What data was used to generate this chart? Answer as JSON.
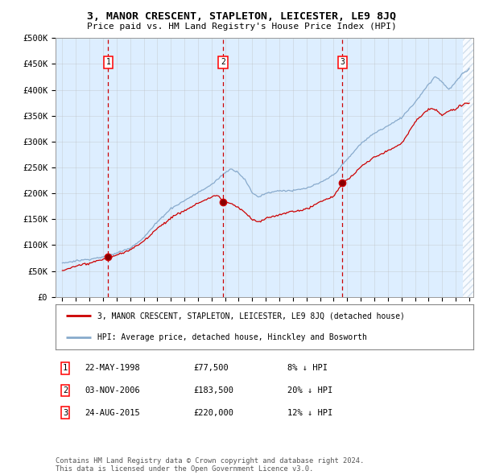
{
  "title": "3, MANOR CRESCENT, STAPLETON, LEICESTER, LE9 8JQ",
  "subtitle": "Price paid vs. HM Land Registry's House Price Index (HPI)",
  "ylim": [
    0,
    500000
  ],
  "yticks": [
    0,
    50000,
    100000,
    150000,
    200000,
    250000,
    300000,
    350000,
    400000,
    450000,
    500000
  ],
  "ytick_labels": [
    "£0",
    "£50K",
    "£100K",
    "£150K",
    "£200K",
    "£250K",
    "£300K",
    "£350K",
    "£400K",
    "£450K",
    "£500K"
  ],
  "sale_dates": [
    1998.38,
    2006.84,
    2015.65
  ],
  "sale_prices": [
    77500,
    183500,
    220000
  ],
  "sale_labels": [
    "1",
    "2",
    "3"
  ],
  "vline_color": "#cc0000",
  "sale_color": "#cc0000",
  "hpi_color": "#88aacc",
  "legend_sale_label": "3, MANOR CRESCENT, STAPLETON, LEICESTER, LE9 8JQ (detached house)",
  "legend_hpi_label": "HPI: Average price, detached house, Hinckley and Bosworth",
  "table_rows": [
    [
      "1",
      "22-MAY-1998",
      "£77,500",
      "8% ↓ HPI"
    ],
    [
      "2",
      "03-NOV-2006",
      "£183,500",
      "20% ↓ HPI"
    ],
    [
      "3",
      "24-AUG-2015",
      "£220,000",
      "12% ↓ HPI"
    ]
  ],
  "footnote": "Contains HM Land Registry data © Crown copyright and database right 2024.\nThis data is licensed under the Open Government Licence v3.0.",
  "plot_bg_color": "#ddeeff",
  "grid_color": "#bbbbbb",
  "hatch_color": "#bbccdd"
}
